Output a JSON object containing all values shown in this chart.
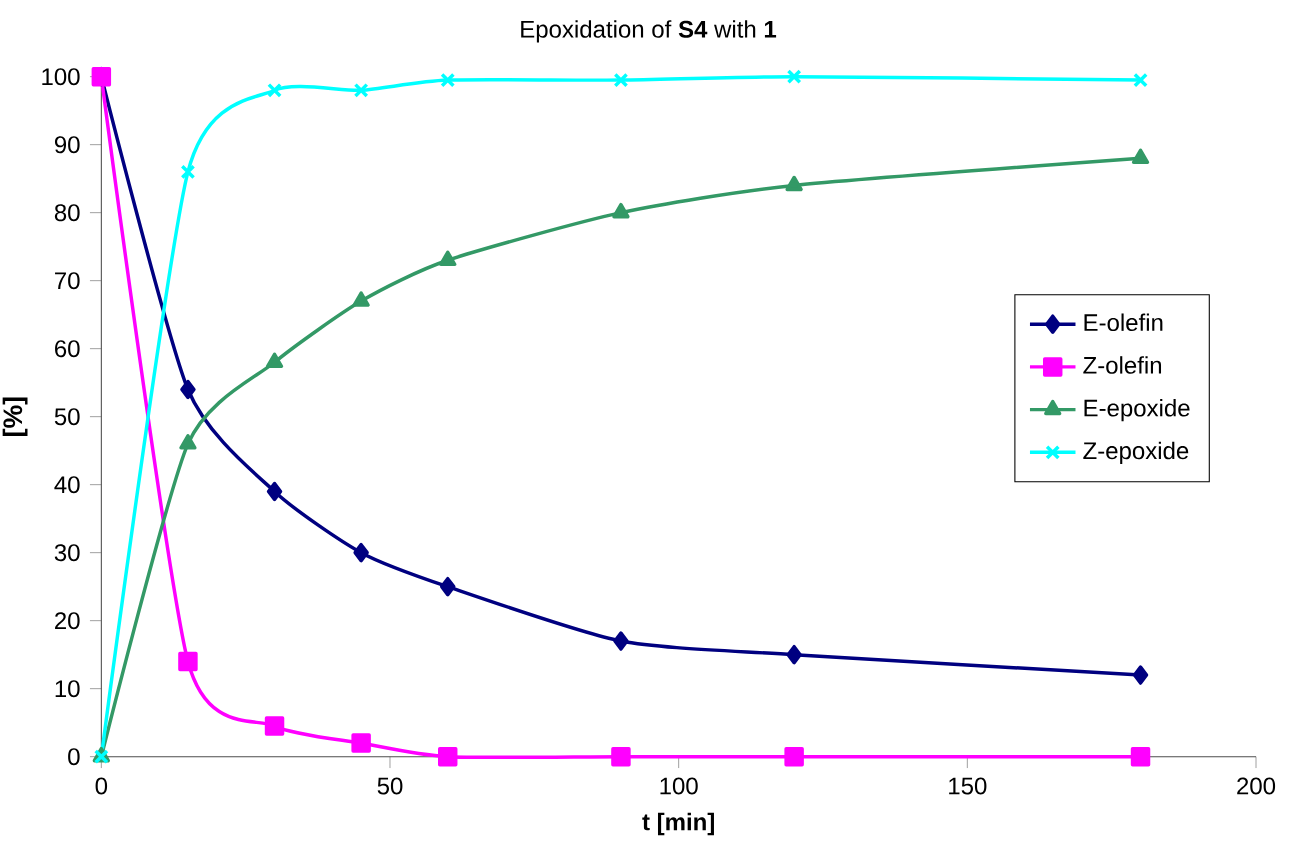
{
  "chart_data": {
    "type": "line",
    "title": "Epoxidation of **S4** with **1**",
    "xlabel": "t [min]",
    "ylabel": "[%]",
    "xlim": [
      0,
      200
    ],
    "xticks": [
      0,
      50,
      100,
      150,
      200
    ],
    "ylim": [
      0,
      100
    ],
    "yticks": [
      0,
      10,
      20,
      30,
      40,
      50,
      60,
      70,
      80,
      90,
      100
    ],
    "grid": false,
    "legend": "right",
    "line_style": "solid",
    "series": [
      {
        "name": "E-olefin",
        "color": "#000080",
        "marker": "diamond",
        "x": [
          0,
          15,
          30,
          45,
          60,
          90,
          120,
          180
        ],
        "values": [
          100,
          54,
          39,
          30,
          25,
          17,
          15,
          12
        ]
      },
      {
        "name": "Z-olefin",
        "color": "#ff00ff",
        "marker": "square",
        "x": [
          0,
          15,
          30,
          45,
          60,
          90,
          120,
          180
        ],
        "values": [
          100,
          14,
          4.5,
          2,
          0,
          0,
          0,
          0
        ]
      },
      {
        "name": "E-epoxide",
        "color": "#339966",
        "marker": "triangle",
        "x": [
          0,
          15,
          30,
          45,
          60,
          90,
          120,
          180
        ],
        "values": [
          0,
          46,
          58,
          67,
          73,
          80,
          84,
          88
        ]
      },
      {
        "name": "Z-epoxide",
        "color": "#00ffff",
        "marker": "cross",
        "x": [
          0,
          15,
          30,
          45,
          60,
          90,
          120,
          180
        ],
        "values": [
          0,
          86,
          98,
          98,
          99.5,
          99.5,
          100,
          99.5
        ]
      }
    ]
  }
}
